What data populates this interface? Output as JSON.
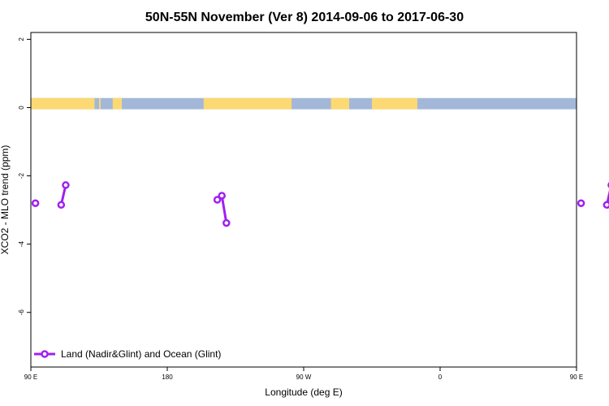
{
  "chart_data": {
    "type": "line",
    "title": "50N-55N November (Ver 8)   2014-09-06 to 2017-06-30",
    "xlabel": "Longitude (deg E)",
    "ylabel": "XCO2 - MLO trend (ppm)",
    "xlim": [
      90,
      450
    ],
    "ylim": [
      -7.6,
      2.2
    ],
    "x_ticks": [
      {
        "value": 90,
        "label": "90 E"
      },
      {
        "value": 180,
        "label": "180"
      },
      {
        "value": 270,
        "label": "90 W"
      },
      {
        "value": 360,
        "label": "0"
      },
      {
        "value": 450,
        "label": "90 E"
      },
      {
        "value": 540,
        "label": "180"
      }
    ],
    "y_ticks": [
      {
        "value": 2,
        "label": "2"
      },
      {
        "value": 0,
        "label": "0"
      },
      {
        "value": -2,
        "label": "-2"
      },
      {
        "value": -4,
        "label": "-4"
      },
      {
        "value": -6,
        "label": "-6"
      }
    ],
    "series": [
      {
        "name": "Land (Nadir&Glint) and Ocean (Glint)",
        "color": "#a020f0",
        "segments": [
          [
            {
              "x": 93,
              "y": -2.8
            }
          ],
          [
            {
              "x": 110,
              "y": -2.85
            },
            {
              "x": 113,
              "y": -2.27
            }
          ],
          [
            {
              "x": 213,
              "y": -2.7
            },
            {
              "x": 216,
              "y": -2.58
            },
            {
              "x": 219,
              "y": -3.38
            }
          ],
          [
            {
              "x": 453,
              "y": -2.8
            }
          ],
          [
            {
              "x": 470,
              "y": -2.85
            },
            {
              "x": 473,
              "y": -2.27
            }
          ]
        ]
      }
    ],
    "land_strip": {
      "land_color": "#fdd974",
      "ocean_color": "#a3b8d8",
      "land_ranges": [
        [
          90,
          132
        ],
        [
          135,
          136
        ],
        [
          144,
          150
        ],
        [
          204,
          262
        ],
        [
          288,
          300
        ],
        [
          315,
          345
        ],
        [
          450,
          492
        ],
        [
          495,
          496
        ],
        [
          504,
          510
        ]
      ]
    },
    "grid": false,
    "legend_position": "bottom-left"
  }
}
